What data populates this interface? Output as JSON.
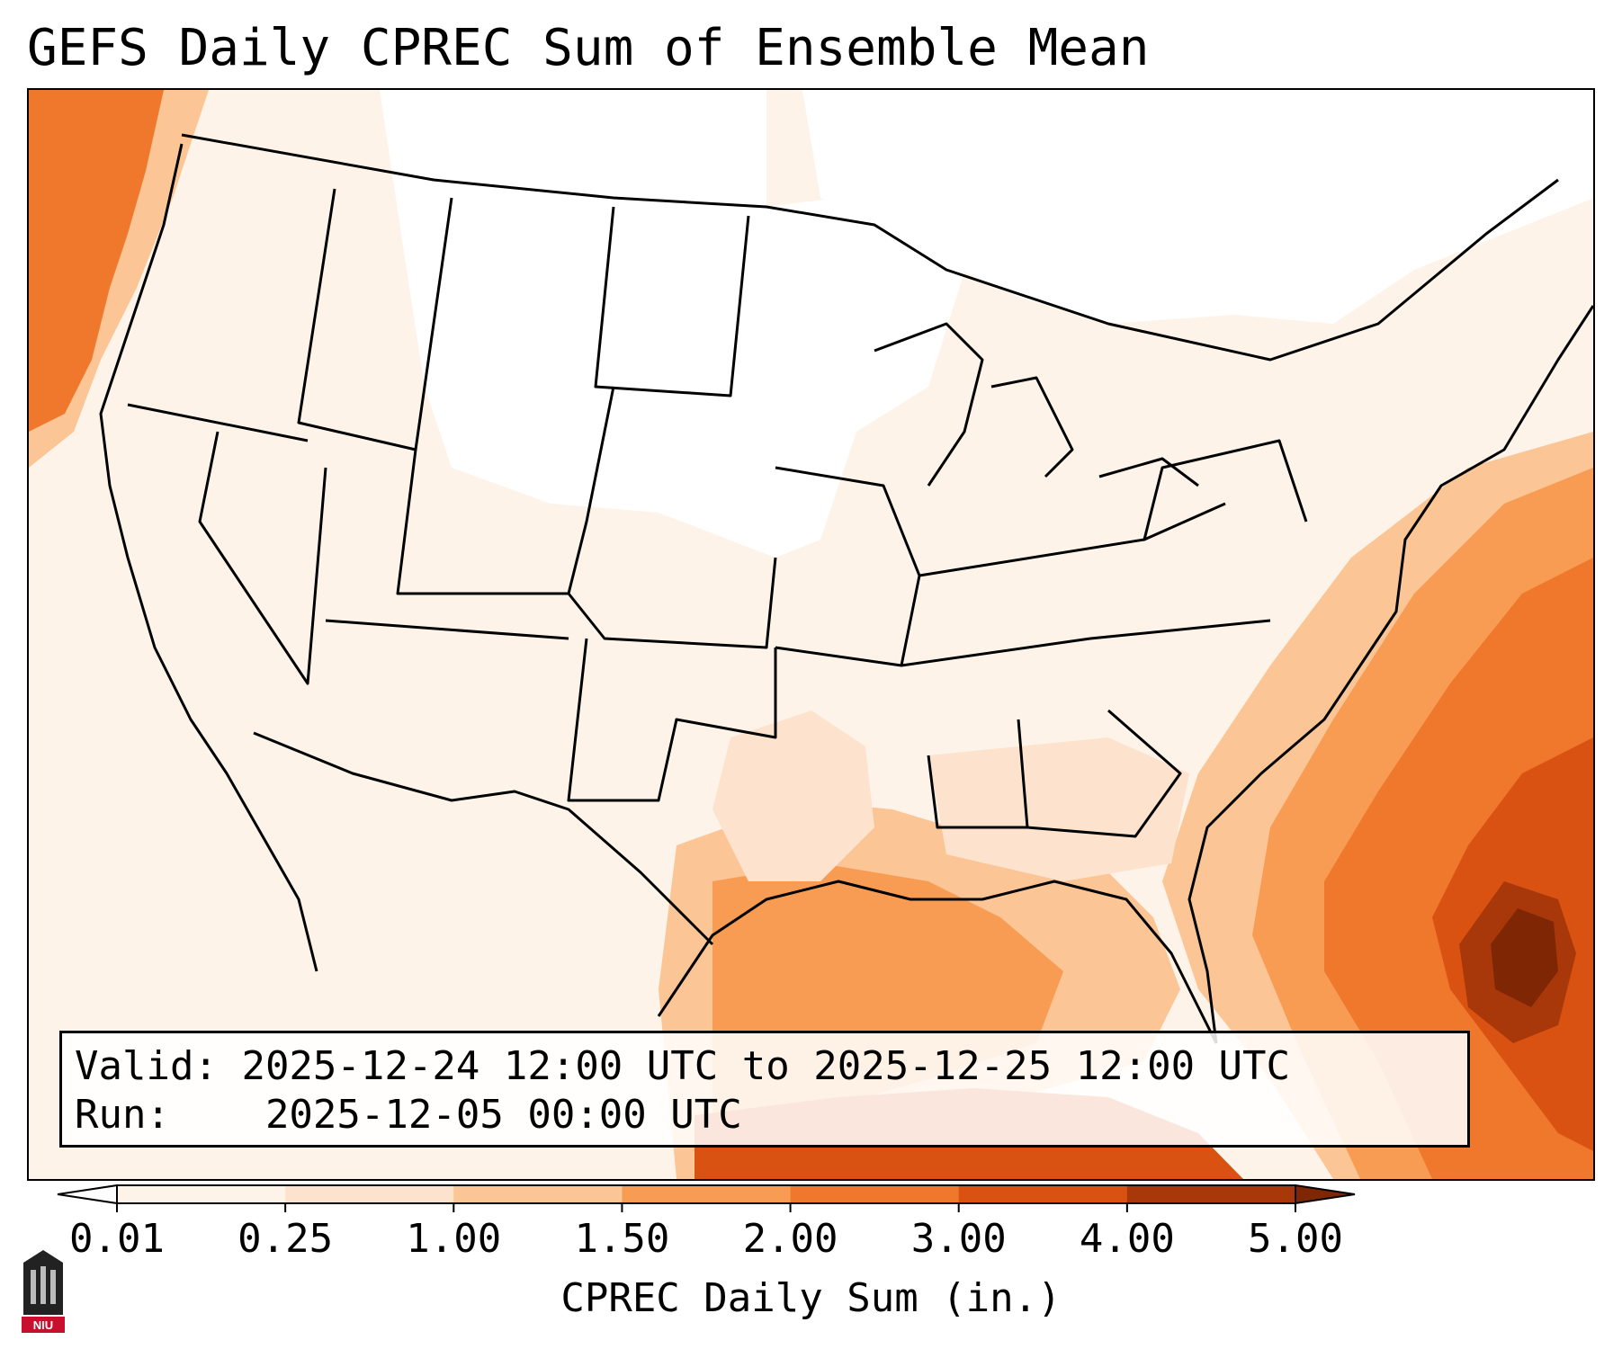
{
  "title": "GEFS Daily CPREC Sum of Ensemble Mean",
  "info": {
    "valid_label": "Valid:",
    "valid_value": "2025-12-24 12:00 UTC to 2025-12-25 12:00 UTC",
    "run_label": "Run:",
    "run_value": "2025-12-05 00:00 UTC"
  },
  "colorbar": {
    "label": "CPREC Daily Sum (in.)",
    "ticks": [
      "0.01",
      "0.25",
      "1.00",
      "1.50",
      "2.00",
      "3.00",
      "4.00",
      "5.00"
    ],
    "colors": [
      "#fef3e9",
      "#fde3cd",
      "#fbc595",
      "#f89b53",
      "#f0782d",
      "#d95211",
      "#a8380a"
    ],
    "extend": "both",
    "under_color": "#ffffff",
    "over_color": "#7f2704"
  },
  "map": {
    "projection": "Lambert Conformal",
    "region": "Contiguous United States",
    "field": "CPREC",
    "heaviest_area": "Western Atlantic near Bahamas",
    "ocean_bands": "Pacific coast, Gulf of Mexico, Atlantic"
  },
  "logo": {
    "text": "NIU",
    "accent": "#c8102e"
  }
}
